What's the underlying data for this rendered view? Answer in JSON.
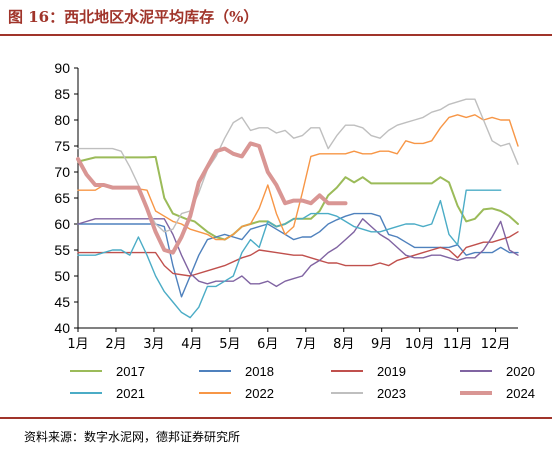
{
  "header": {
    "title": "图 16：西北地区水泥平均库存（%）"
  },
  "footer": {
    "source": "资料来源：数字水泥网，德邦证券研究所"
  },
  "chart_data": {
    "type": "line",
    "title": "图 16：西北地区水泥平均库存（%）",
    "xlabel": "",
    "ylabel": "",
    "ylim": [
      40,
      90
    ],
    "yticks": [
      40,
      45,
      50,
      55,
      60,
      65,
      70,
      75,
      80,
      85,
      90
    ],
    "x_categories": [
      "1月",
      "2月",
      "3月",
      "4月",
      "5月",
      "6月",
      "7月",
      "8月",
      "9月",
      "10月",
      "11月",
      "12月"
    ],
    "x_unit": "week",
    "grid": false,
    "legend_position": "bottom",
    "colors": {
      "2017": "#9bbb59",
      "2018": "#4f81bd",
      "2019": "#c0504d",
      "2020": "#8064a2",
      "2021": "#4bacc6",
      "2022": "#f79646",
      "2023": "#bfbfbf",
      "2024": "#d99694"
    },
    "series": [
      {
        "name": "2017",
        "color": "#9bbb59",
        "width": 2,
        "x": [
          1,
          3,
          6,
          9,
          10,
          11,
          12,
          13.5,
          14.5,
          16,
          17,
          18,
          19,
          20,
          21,
          22,
          23,
          24,
          25,
          26,
          28,
          29,
          30,
          31,
          32,
          33,
          34,
          35,
          36,
          38,
          40,
          42,
          43,
          44,
          45,
          46,
          47,
          48,
          49,
          50,
          51,
          52
        ],
        "values": [
          72,
          72.8,
          72.8,
          72.8,
          72.9,
          65,
          62,
          61,
          60.5,
          58.5,
          57.5,
          57,
          58,
          59.5,
          60,
          60.5,
          60.5,
          59.5,
          60,
          61,
          61,
          62.5,
          65.5,
          67,
          69,
          68,
          69,
          67.8,
          67.8,
          67.8,
          67.8,
          67.8,
          69,
          68,
          63.5,
          60.5,
          61,
          62.8,
          63,
          62.5,
          61.5,
          60
        ]
      },
      {
        "name": "2018",
        "color": "#4f81bd",
        "width": 1.4,
        "x": [
          1,
          4,
          7,
          10,
          11,
          12,
          13,
          14,
          15,
          16,
          17,
          18,
          19,
          20,
          21,
          22,
          23,
          24,
          25,
          26,
          27,
          28,
          29,
          30,
          31,
          32,
          33,
          34,
          35,
          36,
          37,
          38,
          39,
          40,
          41,
          42,
          43,
          44,
          45,
          46,
          47,
          48,
          49,
          50,
          51,
          52
        ],
        "values": [
          60,
          60,
          60,
          60,
          59.5,
          52,
          46,
          50,
          54,
          57,
          57.5,
          58,
          57.5,
          57,
          59,
          59.5,
          60,
          59,
          58,
          57,
          57.5,
          57.5,
          58.5,
          60,
          60.8,
          61.5,
          62,
          62,
          62,
          61.5,
          58,
          57.5,
          56.5,
          55.5,
          55.5,
          55.5,
          55.5,
          55.5,
          56,
          54,
          54.5,
          54.5,
          54.5,
          55.5,
          54.5,
          54.5
        ]
      },
      {
        "name": "2019",
        "color": "#c0504d",
        "width": 1.4,
        "x": [
          1,
          5,
          8,
          10,
          11,
          12,
          14,
          16,
          18,
          20,
          21,
          22,
          24,
          26,
          27,
          28,
          29,
          30,
          31,
          32,
          33,
          34,
          35,
          36,
          37,
          38,
          39,
          40,
          41,
          42,
          43,
          44,
          45,
          46,
          47,
          48,
          49,
          50,
          51,
          52
        ],
        "values": [
          54.5,
          54.5,
          54.5,
          54.5,
          52,
          50.5,
          50,
          51,
          52,
          53.5,
          54,
          55,
          54.5,
          54,
          54,
          53.5,
          53,
          52.5,
          52.5,
          52,
          52,
          52,
          52,
          52.5,
          52,
          53,
          53.5,
          54,
          54.5,
          55,
          55.5,
          55,
          53.5,
          55.5,
          56,
          56.5,
          56.5,
          57,
          57.5,
          58.5
        ]
      },
      {
        "name": "2020",
        "color": "#8064a2",
        "width": 1.4,
        "x": [
          1,
          3,
          6,
          9,
          11,
          12,
          13,
          14,
          15,
          16,
          17,
          18,
          19,
          20,
          21,
          22,
          23,
          24,
          25,
          26,
          27,
          28,
          29,
          30,
          31,
          32,
          33,
          34,
          35,
          36,
          37,
          38,
          39,
          40,
          41,
          42,
          43,
          44,
          45,
          46,
          47,
          48,
          49,
          50,
          51,
          52
        ],
        "values": [
          60,
          61,
          61,
          61,
          61,
          58,
          54,
          50.5,
          49,
          48.5,
          49,
          49,
          49,
          50,
          48.5,
          48.5,
          49,
          48,
          49,
          49.5,
          50,
          52,
          53,
          54.5,
          55.5,
          57,
          58.5,
          61,
          59.5,
          58,
          57,
          55.5,
          54,
          53.5,
          53.5,
          54,
          54,
          53.5,
          53,
          53.5,
          53.5,
          55,
          57.5,
          60.5,
          55,
          54
        ]
      },
      {
        "name": "2021",
        "color": "#4bacc6",
        "width": 1.4,
        "x": [
          1,
          2,
          3,
          4,
          5,
          6,
          7,
          8,
          9,
          10,
          11,
          12,
          13,
          14,
          15,
          16,
          17,
          18,
          19,
          20,
          21,
          22,
          23,
          24,
          25,
          26,
          27,
          28,
          29,
          30,
          31,
          32,
          33,
          34,
          35,
          36,
          37,
          38,
          39,
          40,
          41,
          42,
          43,
          44,
          45,
          46,
          47,
          48,
          49,
          50
        ],
        "values": [
          54,
          54,
          54,
          54.5,
          55,
          55,
          54,
          57.5,
          54,
          50,
          47,
          45,
          43,
          42,
          44,
          48,
          48,
          49,
          50,
          54.5,
          57,
          55.5,
          60.5,
          59.5,
          60,
          61,
          61,
          62,
          62,
          62,
          61.5,
          60.5,
          59.5,
          59,
          58.5,
          58.5,
          59,
          59.5,
          60,
          60,
          59.5,
          60,
          64.5,
          58,
          56,
          66.5,
          66.5,
          66.5,
          66.5,
          66.5
        ]
      },
      {
        "name": "2022",
        "color": "#f79646",
        "width": 1.4,
        "x": [
          1,
          3,
          4,
          5,
          7,
          9,
          10,
          11,
          12,
          13,
          14,
          15,
          16,
          17,
          18,
          19,
          20,
          21,
          22,
          23,
          24,
          25,
          26,
          27,
          28,
          29,
          30,
          31,
          32,
          33,
          34,
          35,
          36,
          37,
          38,
          39,
          40,
          41,
          42,
          43,
          44,
          45,
          46,
          47,
          48,
          49,
          50,
          51,
          52
        ],
        "values": [
          66.5,
          66.5,
          67.5,
          67,
          67,
          66.5,
          62.5,
          61.5,
          60.5,
          60,
          59,
          58.5,
          58,
          57,
          57,
          58,
          59.5,
          60,
          63,
          67.5,
          62,
          58,
          59.5,
          66,
          73,
          73.5,
          73.5,
          73.5,
          73.5,
          74,
          73.5,
          73.5,
          74,
          74,
          73.5,
          76,
          75.5,
          75.5,
          76,
          78.5,
          80.5,
          81,
          80.5,
          81,
          80,
          80.5,
          80,
          80,
          75
        ]
      },
      {
        "name": "2023",
        "color": "#bfbfbf",
        "width": 1.4,
        "x": [
          1,
          2,
          3,
          4,
          5,
          6,
          7,
          8,
          9,
          10,
          11,
          12,
          13,
          14,
          15,
          16,
          17,
          18,
          19,
          20,
          21,
          22,
          23,
          24,
          25,
          26,
          27,
          28,
          29,
          30,
          31,
          32,
          33,
          34,
          35,
          36,
          37,
          38,
          39,
          40,
          41,
          42,
          43,
          44,
          45,
          46,
          47,
          48,
          49,
          50,
          51,
          52
        ],
        "values": [
          74.5,
          74.5,
          74.5,
          74.5,
          74.5,
          74,
          71,
          67.5,
          63,
          60,
          58.5,
          59,
          62,
          62.5,
          66,
          70.5,
          73,
          76.5,
          79.5,
          80.5,
          78,
          78.5,
          78.5,
          77.5,
          78,
          76.5,
          77,
          78.5,
          78.5,
          74.5,
          77,
          79,
          79,
          78.5,
          77,
          76.5,
          78,
          79,
          79.5,
          80,
          80.5,
          81.5,
          82,
          83,
          83.5,
          84,
          84,
          80,
          76,
          75,
          75.5,
          71.5
        ]
      },
      {
        "name": "2024",
        "color": "#d99694",
        "width": 4,
        "x": [
          1,
          2,
          3,
          4,
          5,
          6,
          7,
          8,
          9,
          10,
          11,
          12,
          13,
          14,
          15,
          16,
          17,
          18,
          19,
          20,
          21,
          22,
          23,
          24,
          25,
          26,
          27,
          28,
          29,
          30,
          31,
          32
        ],
        "values": [
          72.5,
          69.5,
          67.5,
          67.5,
          67,
          67,
          67,
          67,
          63,
          58.5,
          55,
          54.5,
          57.5,
          61.5,
          68,
          71,
          74,
          74.5,
          73.5,
          73,
          75.5,
          75,
          70,
          67.5,
          64,
          64.5,
          64.5,
          64,
          65.5,
          64,
          64,
          64
        ]
      }
    ],
    "legend": [
      "2017",
      "2018",
      "2019",
      "2020",
      "2021",
      "2022",
      "2023",
      "2024"
    ]
  }
}
